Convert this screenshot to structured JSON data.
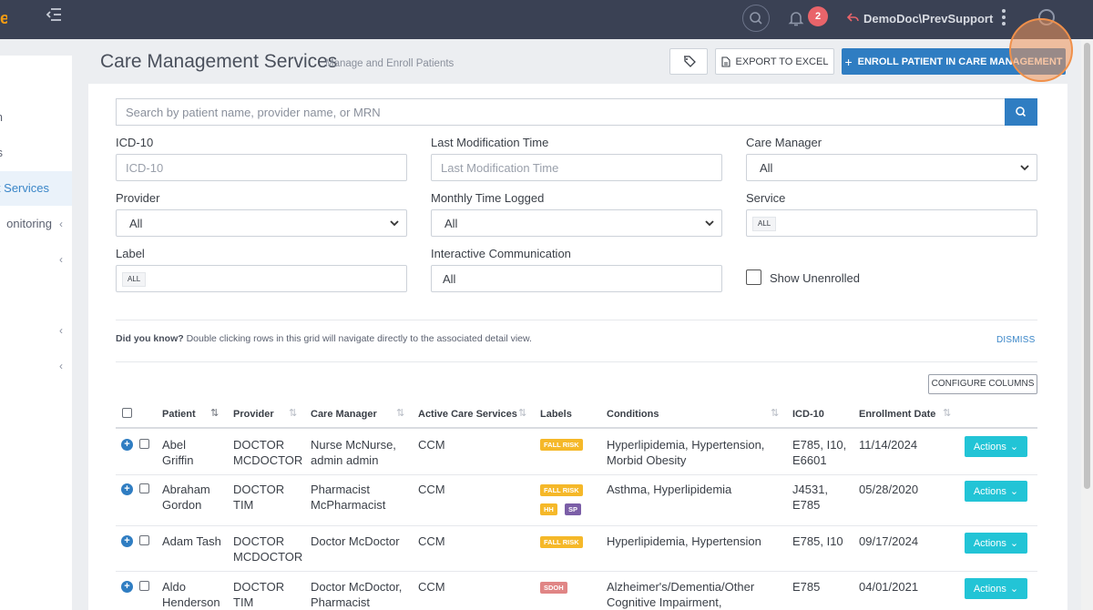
{
  "topbar": {
    "notifications_count": "2",
    "user": "DemoDoc\\PrevSupport"
  },
  "sidebar": {
    "items": [
      {
        "label": "n",
        "active": false,
        "chevron": false
      },
      {
        "label": "s",
        "active": false,
        "chevron": false
      },
      {
        "label": "t Services",
        "active": true,
        "chevron": false
      },
      {
        "label": "onitoring",
        "active": false,
        "chevron": true
      },
      {
        "label": "",
        "active": false,
        "chevron": true
      },
      {
        "label": "",
        "active": false,
        "chevron": true
      },
      {
        "label": "",
        "active": false,
        "chevron": true
      }
    ]
  },
  "header": {
    "title": "Care Management Services",
    "subtitle": "Manage and Enroll Patients",
    "export_label": "EXPORT TO EXCEL",
    "enroll_label": "ENROLL PATIENT IN CARE MANAGEMENT"
  },
  "search": {
    "placeholder": "Search by patient name, provider name, or MRN"
  },
  "filters": {
    "icd10_label": "ICD-10",
    "icd10_placeholder": "ICD-10",
    "last_mod_label": "Last Modification Time",
    "last_mod_placeholder": "Last Modification Time",
    "care_manager_label": "Care Manager",
    "care_manager_value": "All",
    "provider_label": "Provider",
    "provider_value": "All",
    "monthly_time_label": "Monthly Time Logged",
    "monthly_time_value": "All",
    "service_label": "Service",
    "service_chip": "ALL",
    "label_label": "Label",
    "label_chip": "ALL",
    "interactive_label": "Interactive Communication",
    "interactive_value": "All",
    "show_unenrolled_label": "Show Unenrolled"
  },
  "notice": {
    "bold": "Did you know?",
    "text": " Double clicking rows in this grid will navigate directly to the associated detail view.",
    "dismiss": "DISMISS"
  },
  "configure_columns_label": "CONFIGURE COLUMNS",
  "table": {
    "columns": [
      "Patient",
      "Provider",
      "Care Manager",
      "Active Care Services",
      "Labels",
      "Conditions",
      "ICD-10",
      "Enrollment Date"
    ],
    "actions_label": "Actions",
    "rows": [
      {
        "patient": [
          "Abel",
          "Griffin"
        ],
        "provider": [
          "DOCTOR",
          "MCDOCTOR"
        ],
        "care_manager": [
          "Nurse McNurse,",
          "admin admin"
        ],
        "service": "CCM",
        "labels": [
          [
            "FALL RISK"
          ]
        ],
        "conditions": [
          "Hyperlipidemia, Hypertension,",
          "Morbid Obesity"
        ],
        "icd10": [
          "E785, I10,",
          "E6601"
        ],
        "date": "11/14/2024"
      },
      {
        "patient": [
          "Abraham",
          "Gordon"
        ],
        "provider": [
          "DOCTOR",
          "TIM"
        ],
        "care_manager": [
          "Pharmacist",
          "McPharmacist"
        ],
        "service": "CCM",
        "labels": [
          [
            "FALL RISK"
          ],
          [
            "HH",
            "SP"
          ]
        ],
        "conditions": [
          "Asthma, Hyperlipidemia"
        ],
        "icd10": [
          "J4531,",
          "E785"
        ],
        "date": "05/28/2020"
      },
      {
        "patient": [
          "Adam Tash"
        ],
        "provider": [
          "DOCTOR",
          "MCDOCTOR"
        ],
        "care_manager": [
          "Doctor McDoctor"
        ],
        "service": "CCM",
        "labels": [
          [
            "FALL RISK"
          ]
        ],
        "conditions": [
          "Hyperlipidemia, Hypertension"
        ],
        "icd10": [
          "E785, I10"
        ],
        "date": "09/17/2024"
      },
      {
        "patient": [
          "Aldo",
          "Henderson"
        ],
        "provider": [
          "DOCTOR",
          "TIM"
        ],
        "care_manager": [
          "Doctor McDoctor,",
          "Pharmacist"
        ],
        "service": "CCM",
        "labels": [
          [
            "SDOH"
          ]
        ],
        "conditions": [
          "Alzheimer's/Dementia/Other",
          "Cognitive Impairment,"
        ],
        "icd10": [
          "E785"
        ],
        "date": "04/01/2021"
      }
    ]
  }
}
